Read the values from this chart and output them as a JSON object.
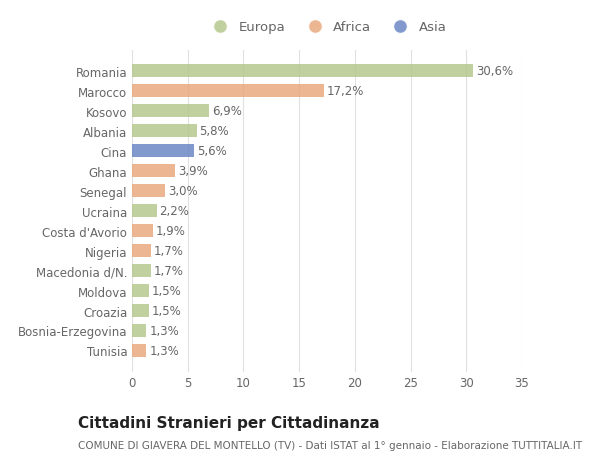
{
  "countries": [
    "Romania",
    "Marocco",
    "Kosovo",
    "Albania",
    "Cina",
    "Ghana",
    "Senegal",
    "Ucraina",
    "Costa d'Avorio",
    "Nigeria",
    "Macedonia d/N.",
    "Moldova",
    "Croazia",
    "Bosnia-Erzegovina",
    "Tunisia"
  ],
  "values": [
    30.6,
    17.2,
    6.9,
    5.8,
    5.6,
    3.9,
    3.0,
    2.2,
    1.9,
    1.7,
    1.7,
    1.5,
    1.5,
    1.3,
    1.3
  ],
  "labels": [
    "30,6%",
    "17,2%",
    "6,9%",
    "5,8%",
    "5,6%",
    "3,9%",
    "3,0%",
    "2,2%",
    "1,9%",
    "1,7%",
    "1,7%",
    "1,5%",
    "1,5%",
    "1,3%",
    "1,3%"
  ],
  "continents": [
    "Europa",
    "Africa",
    "Europa",
    "Europa",
    "Asia",
    "Africa",
    "Africa",
    "Europa",
    "Africa",
    "Africa",
    "Europa",
    "Europa",
    "Europa",
    "Europa",
    "Africa"
  ],
  "colors": {
    "Europa": "#b5c98e",
    "Africa": "#e8a97e",
    "Asia": "#6b87c4"
  },
  "legend_labels": [
    "Europa",
    "Africa",
    "Asia"
  ],
  "title": "Cittadini Stranieri per Cittadinanza",
  "subtitle": "COMUNE DI GIAVERA DEL MONTELLO (TV) - Dati ISTAT al 1° gennaio - Elaborazione TUTTITALIA.IT",
  "xlim": [
    0,
    35
  ],
  "xticks": [
    0,
    5,
    10,
    15,
    20,
    25,
    30,
    35
  ],
  "bg_color": "#ffffff",
  "plot_bg_color": "#ffffff",
  "grid_color": "#e0e0e0",
  "label_color": "#666666",
  "title_color": "#222222",
  "subtitle_color": "#666666",
  "title_fontsize": 11,
  "subtitle_fontsize": 7.5,
  "tick_fontsize": 8.5,
  "bar_label_fontsize": 8.5,
  "bar_height": 0.65,
  "bar_alpha": 0.85
}
